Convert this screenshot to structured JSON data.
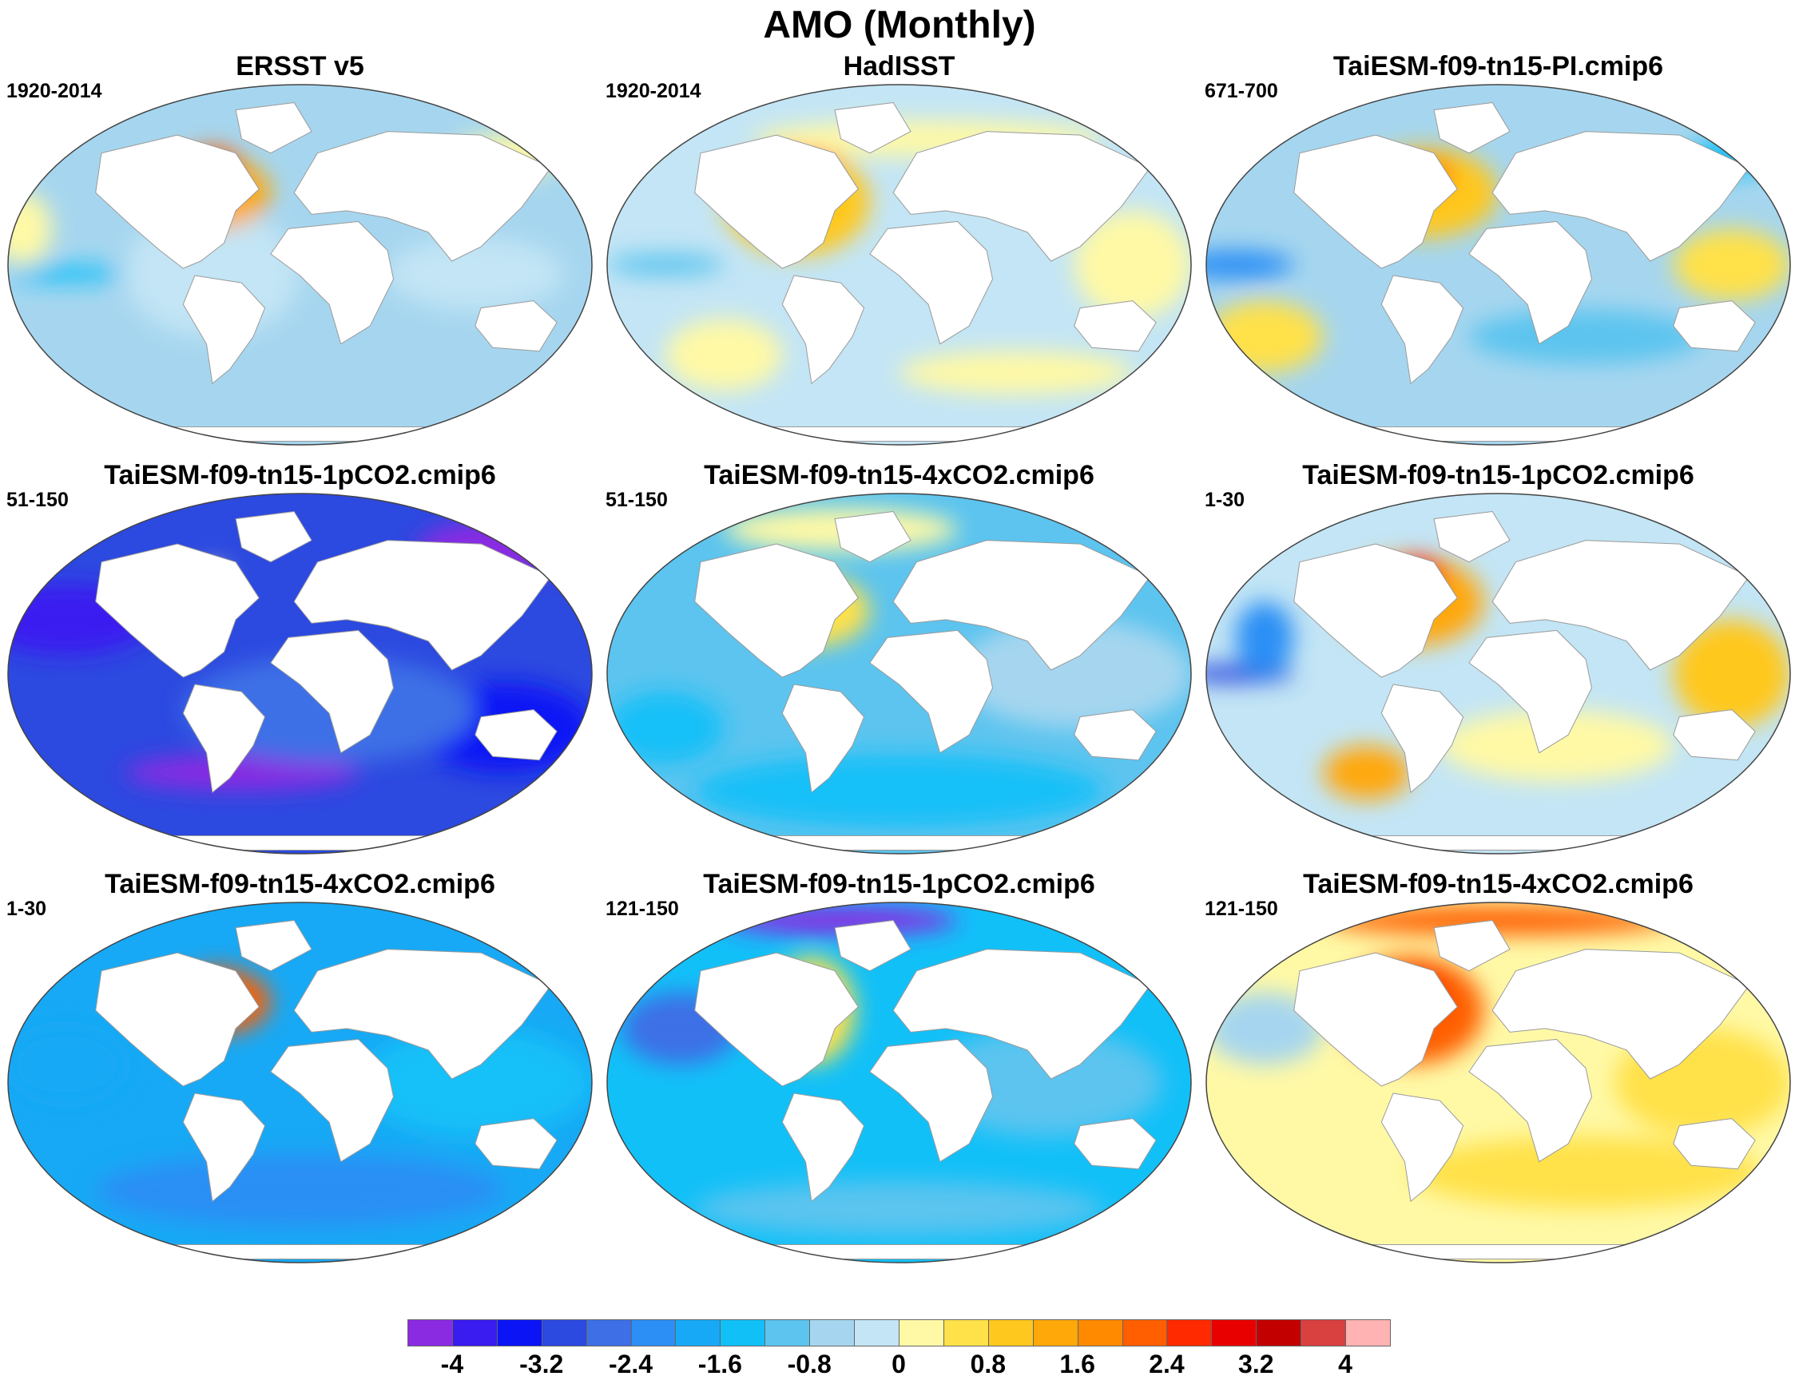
{
  "title": "AMO (Monthly)",
  "panels": [
    {
      "title": "ERSST v5",
      "period": "1920-2014",
      "mode": "obs1"
    },
    {
      "title": "HadISST",
      "period": "1920-2014",
      "mode": "obs2"
    },
    {
      "title": "TaiESM-f09-tn15-PI.cmip6",
      "period": "671-700",
      "mode": "pi"
    },
    {
      "title": "TaiESM-f09-tn15-1pCO2.cmip6",
      "period": "51-150",
      "mode": "cold"
    },
    {
      "title": "TaiESM-f09-tn15-4xCO2.cmip6",
      "period": "51-150",
      "mode": "mild"
    },
    {
      "title": "TaiESM-f09-tn15-1pCO2.cmip6",
      "period": "1-30",
      "mode": "warm"
    },
    {
      "title": "TaiESM-f09-tn15-4xCO2.cmip6",
      "period": "1-30",
      "mode": "blue"
    },
    {
      "title": "TaiESM-f09-tn15-1pCO2.cmip6",
      "period": "121-150",
      "mode": "mixed"
    },
    {
      "title": "TaiESM-f09-tn15-4xCO2.cmip6",
      "period": "121-150",
      "mode": "hot"
    }
  ],
  "colorbar": {
    "colors": [
      "#8a2be2",
      "#3a1bf0",
      "#0a14f5",
      "#2c49e0",
      "#3e6fe6",
      "#2b8ff5",
      "#17a9f5",
      "#12c0f8",
      "#5cc4ef",
      "#a6d6ef",
      "#c3e5f5",
      "#fff9a6",
      "#ffe14a",
      "#ffc81e",
      "#ffa80a",
      "#ff8a00",
      "#ff5f00",
      "#ff2a00",
      "#e80000",
      "#c20000",
      "#d94040",
      "#ffb3b3"
    ],
    "tick_labels": [
      "-4",
      "-3.2",
      "-2.4",
      "-1.6",
      "-0.8",
      "0",
      "0.8",
      "1.6",
      "2.4",
      "3.2",
      "4"
    ]
  }
}
